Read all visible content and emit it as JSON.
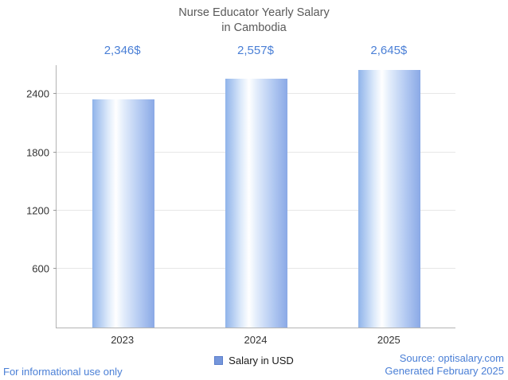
{
  "title": {
    "line1": "Nurse Educator Yearly Salary",
    "line2": "in Cambodia"
  },
  "chart_data": {
    "type": "bar",
    "title": "Nurse Educator Yearly Salary in Cambodia",
    "categories": [
      "2023",
      "2024",
      "2025"
    ],
    "values": [
      2346,
      2557,
      2645
    ],
    "value_labels": [
      "2,346$",
      "2,557$",
      "2,645$"
    ],
    "series": [
      {
        "name": "Salary in USD",
        "values": [
          2346,
          2557,
          2645
        ]
      }
    ],
    "xlabel": "",
    "ylabel": "",
    "yticks": [
      600,
      1200,
      1800,
      2400
    ],
    "ylim": [
      0,
      2700
    ],
    "grid": true,
    "legend_position": "bottom"
  },
  "legend": {
    "label": "Salary in USD",
    "marker_color": "#7596db"
  },
  "footer": {
    "left": "For informational use only",
    "source": "Source: optisalary.com",
    "generated": "Generated February 2025"
  },
  "colors": {
    "accent_text": "#4a7fd6",
    "bar_edge": "#8aa9e6",
    "bar_center": "#ffffff",
    "axis": "#b3b3b3",
    "gridline": "#e7e7e7",
    "title_text": "#595959"
  }
}
